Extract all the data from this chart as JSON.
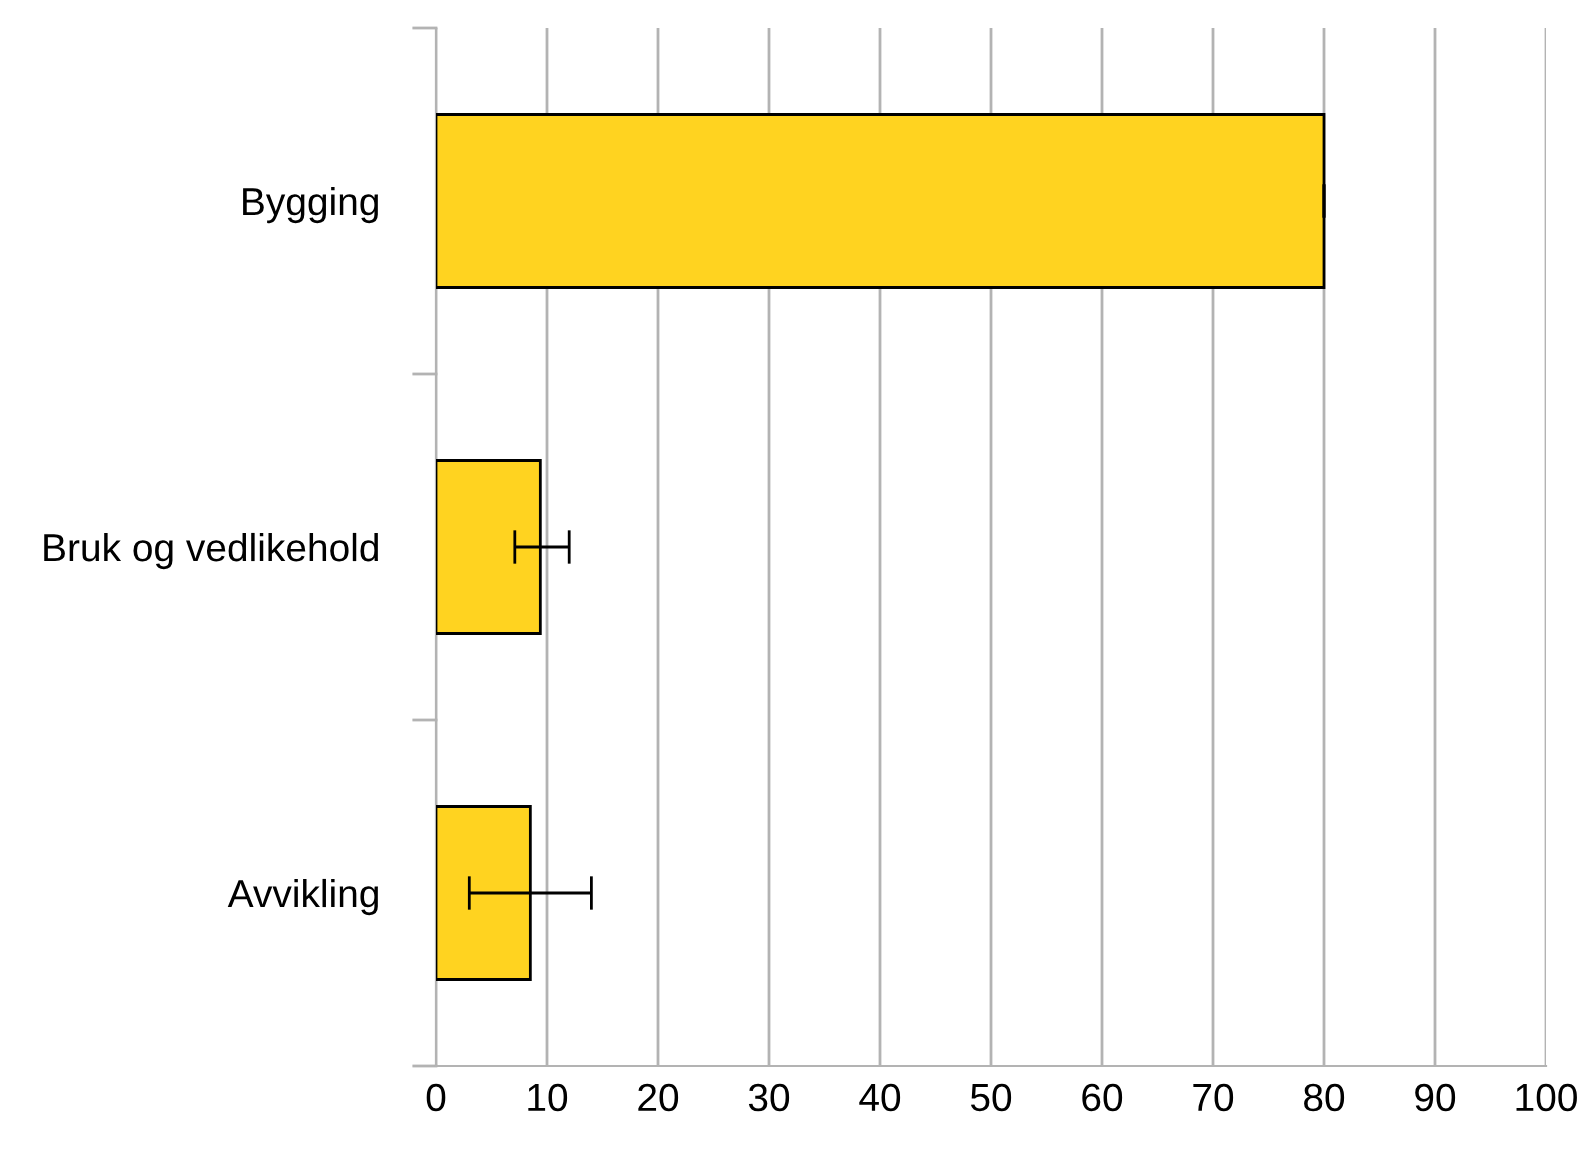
{
  "chart_data": {
    "type": "bar",
    "orientation": "horizontal",
    "categories": [
      "Bygging",
      "Bruk og vedlikehold",
      "Avvikling"
    ],
    "values": [
      80,
      9.4,
      8.5
    ],
    "errors": [
      [
        80,
        80
      ],
      [
        7.1,
        12.0
      ],
      [
        3.0,
        14.0
      ]
    ],
    "color": "#ffd320",
    "xlim": [
      0,
      100
    ],
    "xticks": [
      0,
      10,
      20,
      30,
      40,
      50,
      60,
      70,
      80,
      90,
      100
    ],
    "grid": "x"
  }
}
